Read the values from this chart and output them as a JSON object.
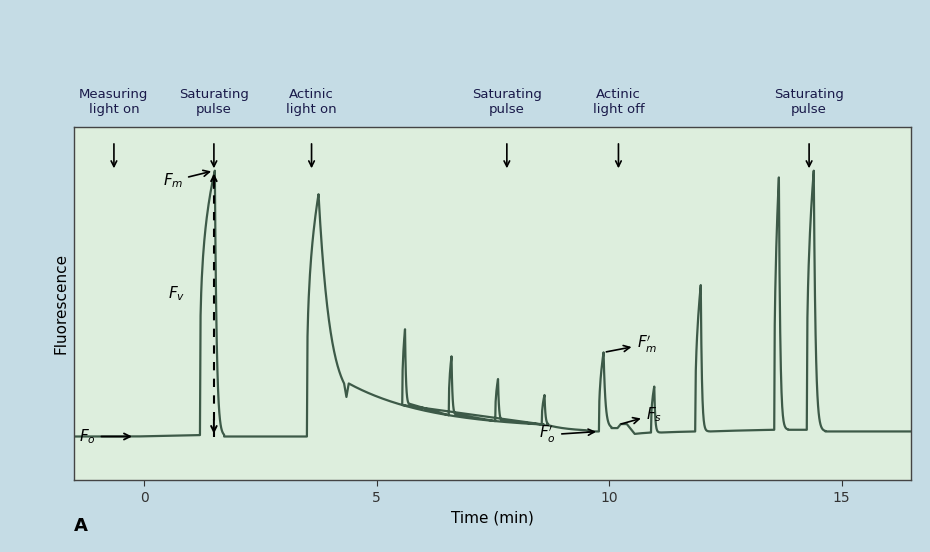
{
  "plot_bg": "#ddeedd",
  "line_color": "#3d5a48",
  "fig_bg": "#c5dce5",
  "xlabel": "Time (min)",
  "ylabel": "Fluorescence",
  "xlim": [
    -1.5,
    16.5
  ],
  "ylim": [
    0,
    10.5
  ],
  "x_ticks": [
    0,
    5,
    10,
    15
  ],
  "fo_level": 1.3,
  "fm_level": 9.2,
  "fs_level": 1.55,
  "fop_level": 1.45,
  "fmp_level": 3.8,
  "fm_actinic": 8.5,
  "fm_recovery1": 5.8,
  "fm_recovery2": 9.0,
  "fm_final": 9.2,
  "top_annotations": [
    {
      "text": "Measuring\nlight on",
      "x": -0.65
    },
    {
      "text": "Saturating\npulse",
      "x": 1.5
    },
    {
      "text": "Actinic\nlight on",
      "x": 3.6
    },
    {
      "text": "Saturating\npulse",
      "x": 7.8
    },
    {
      "text": "Actinic\nlight off",
      "x": 10.2
    },
    {
      "text": "Saturating\npulse",
      "x": 14.3
    }
  ]
}
